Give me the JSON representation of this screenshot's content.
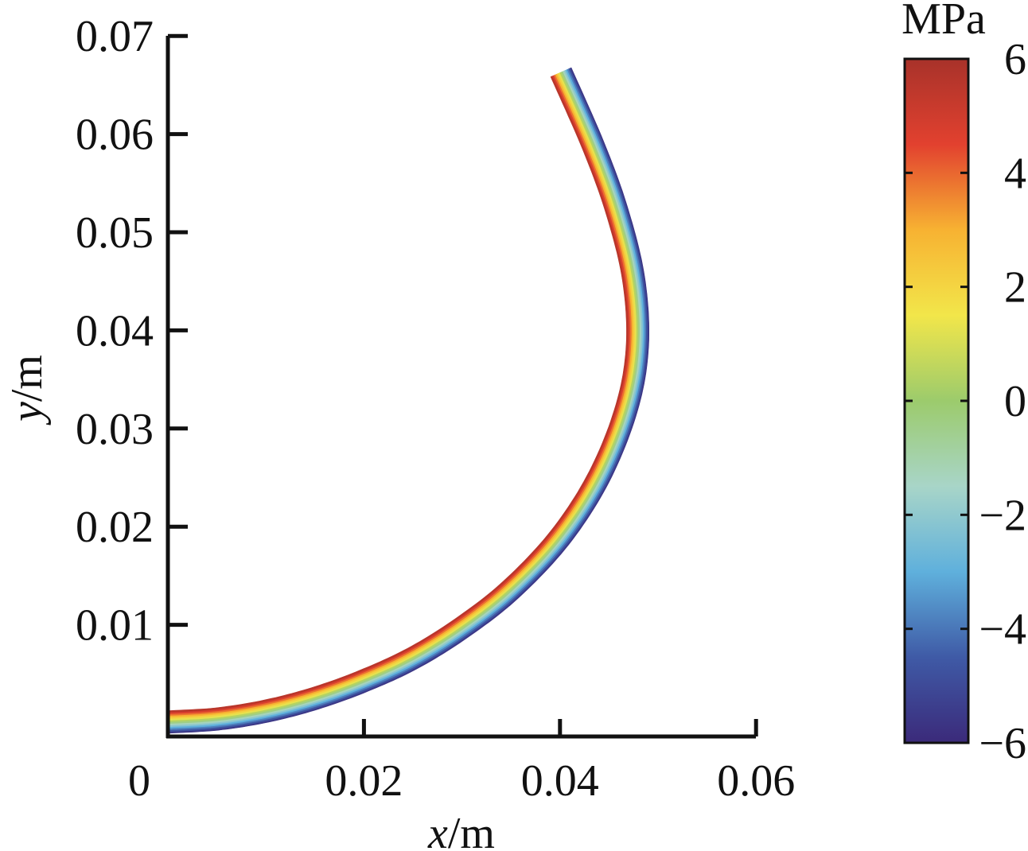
{
  "chart_data": {
    "type": "heatmap",
    "description_type": "stress contour along a curved beam",
    "xlabel_var": "x",
    "xlabel_unit": "/m",
    "ylabel_var": "y",
    "ylabel_unit": "/m",
    "xlim": [
      0,
      0.06
    ],
    "ylim": [
      -0.0015,
      0.07
    ],
    "xticks": [
      "0",
      "0.02",
      "0.04",
      "0.06"
    ],
    "xtick_values": [
      0,
      0.02,
      0.04,
      0.06
    ],
    "yticks": [
      "0.01",
      "0.02",
      "0.03",
      "0.04",
      "0.05",
      "0.06",
      "0.07"
    ],
    "ytick_values": [
      0.01,
      0.02,
      0.03,
      0.04,
      0.05,
      0.06,
      0.07
    ],
    "beam_centerline": [
      {
        "x": 0.0,
        "y": 0.0001
      },
      {
        "x": 0.005,
        "y": 0.0004
      },
      {
        "x": 0.01,
        "y": 0.0012
      },
      {
        "x": 0.015,
        "y": 0.0025
      },
      {
        "x": 0.02,
        "y": 0.0043
      },
      {
        "x": 0.025,
        "y": 0.0066
      },
      {
        "x": 0.03,
        "y": 0.0097
      },
      {
        "x": 0.035,
        "y": 0.0136
      },
      {
        "x": 0.04,
        "y": 0.0189
      },
      {
        "x": 0.044,
        "y": 0.0251
      },
      {
        "x": 0.0468,
        "y": 0.0321
      },
      {
        "x": 0.0479,
        "y": 0.0385
      },
      {
        "x": 0.0475,
        "y": 0.0453
      },
      {
        "x": 0.0458,
        "y": 0.0522
      },
      {
        "x": 0.0434,
        "y": 0.0588
      },
      {
        "x": 0.0401,
        "y": 0.0663
      }
    ],
    "beam_thickness_m": 0.0023,
    "stress_across_thickness_MPa": [
      -6,
      6
    ],
    "colorbar": {
      "title": "MPa",
      "min": -6,
      "max": 6,
      "ticks": [
        "6",
        "4",
        "2",
        "0",
        "−2",
        "−4",
        "−6"
      ],
      "tick_values": [
        6,
        4,
        2,
        0,
        -2,
        -4,
        -6
      ],
      "colormap": [
        "#3b2a7a",
        "#3f5aa6",
        "#5fb0dc",
        "#a8d5c8",
        "#9ccb6c",
        "#f2e64a",
        "#f7b232",
        "#e2412f",
        "#a8322a"
      ]
    }
  }
}
